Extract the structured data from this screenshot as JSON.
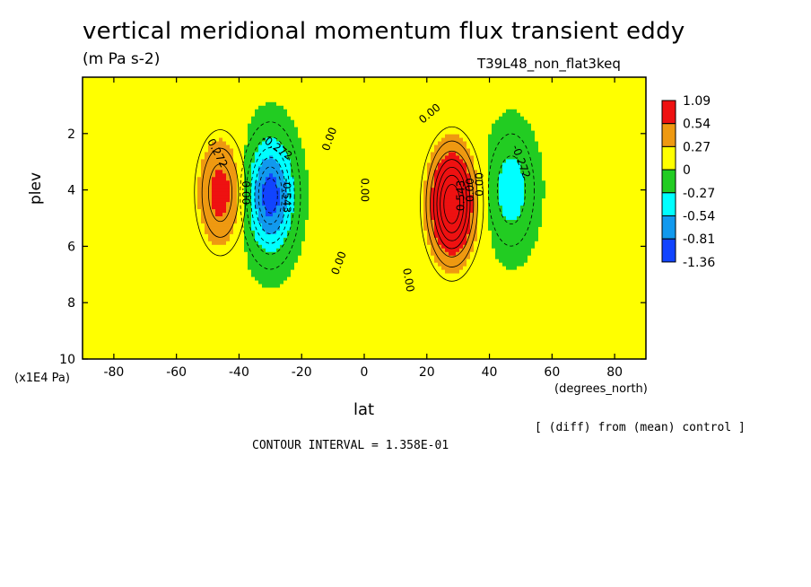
{
  "chart_data": {
    "type": "heatmap",
    "title": "vertical meridional momentum flux transient eddy",
    "subtitle": "(m Pa s-2)",
    "run_label": "T39L48_non_flat3keq",
    "xlabel": "lat",
    "xunit": "(degrees_north)",
    "ylabel": "plev",
    "yunit": "(x1E4 Pa)",
    "xlim": [
      -90,
      90
    ],
    "ylim": [
      10,
      0
    ],
    "y_reversed": true,
    "x_ticks": [
      -80,
      -60,
      -40,
      -20,
      0,
      20,
      40,
      60,
      80
    ],
    "y_ticks": [
      2,
      4,
      6,
      8,
      10
    ],
    "x_tick_labels": [
      "-80",
      "-60",
      "-40",
      "-20",
      "0",
      "20",
      "40",
      "60",
      "80"
    ],
    "y_tick_labels": [
      "2",
      "4",
      "6",
      "8",
      "10"
    ],
    "contour_interval_label": "CONTOUR INTERVAL = 1.358E-01",
    "note": "[ (diff) from (mean) control ]",
    "legend": {
      "placement": "right",
      "levels": [
        "1.09",
        "0.54",
        "0.27",
        "0",
        "-0.27",
        "-0.54",
        "-0.81",
        "-1.36"
      ],
      "colors": [
        "#ee1111",
        "#ee9911",
        "#ffff00",
        "#22cc22",
        "#00ffff",
        "#1199ee",
        "#1144ff"
      ]
    },
    "contour_labels": [
      {
        "text": "0.272",
        "lat": -47,
        "p": 2.7,
        "angle": 62
      },
      {
        "text": "0.00",
        "lat": -38,
        "p": 4.1,
        "angle": 90
      },
      {
        "text": "-0.272",
        "lat": -28,
        "p": 2.5,
        "angle": 35
      },
      {
        "text": "-0.543",
        "lat": -25,
        "p": 4.2,
        "angle": 90
      },
      {
        "text": "0.00",
        "lat": -11,
        "p": 2.2,
        "angle": -70
      },
      {
        "text": "0.00",
        "lat": 0,
        "p": 4.0,
        "angle": 90
      },
      {
        "text": "0.00",
        "lat": -8,
        "p": 6.6,
        "angle": -70
      },
      {
        "text": "0.00",
        "lat": 21,
        "p": 1.3,
        "angle": -40
      },
      {
        "text": "0.00",
        "lat": 14,
        "p": 7.2,
        "angle": 80
      },
      {
        "text": "0.543",
        "lat": 31,
        "p": 4.2,
        "angle": -90
      },
      {
        "text": "0.00",
        "lat": 34,
        "p": 4.0,
        "angle": -90
      },
      {
        "text": "0.00",
        "lat": 37,
        "p": 3.8,
        "angle": -90
      },
      {
        "text": "-0.272",
        "lat": 50,
        "p": 3.0,
        "angle": 70
      }
    ],
    "features": [
      {
        "kind": "max",
        "lat": -46,
        "p": 4.1,
        "peak": 0.6
      },
      {
        "kind": "min",
        "lat": -30,
        "p": 4.2,
        "peak": -1.0
      },
      {
        "kind": "max",
        "lat": 28,
        "p": 4.5,
        "peak": 1.2
      },
      {
        "kind": "min",
        "lat": 47,
        "p": 4.0,
        "peak": -0.45
      }
    ]
  }
}
